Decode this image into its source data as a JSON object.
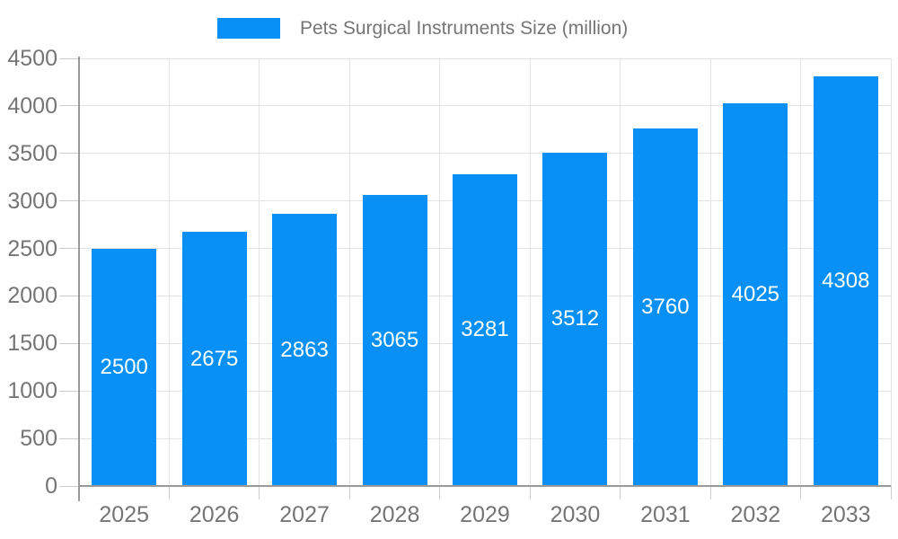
{
  "chart_data": {
    "type": "bar",
    "title": "",
    "legend": "Pets Surgical Instruments Size (million)",
    "legend_position": "top-center",
    "categories": [
      "2025",
      "2026",
      "2027",
      "2028",
      "2029",
      "2030",
      "2031",
      "2032",
      "2033"
    ],
    "series": [
      {
        "name": "Pets Surgical Instruments Size (million)",
        "values": [
          2500,
          2675,
          2863,
          3065,
          3281,
          3512,
          3760,
          4025,
          4308
        ]
      }
    ],
    "xlabel": "",
    "ylabel": "",
    "ylim": [
      0,
      4500
    ],
    "yticks": [
      0,
      500,
      1000,
      1500,
      2000,
      2500,
      3000,
      3500,
      4000,
      4500
    ],
    "grid": true,
    "colors": {
      "bar": "#0890f6",
      "bar_value_text": "#ffffff",
      "axis_text": "#757575",
      "grid_line": "#e3e3e3",
      "tick_line": "#cccccc",
      "axis_line": "#999999",
      "background": "#ffffff"
    }
  }
}
